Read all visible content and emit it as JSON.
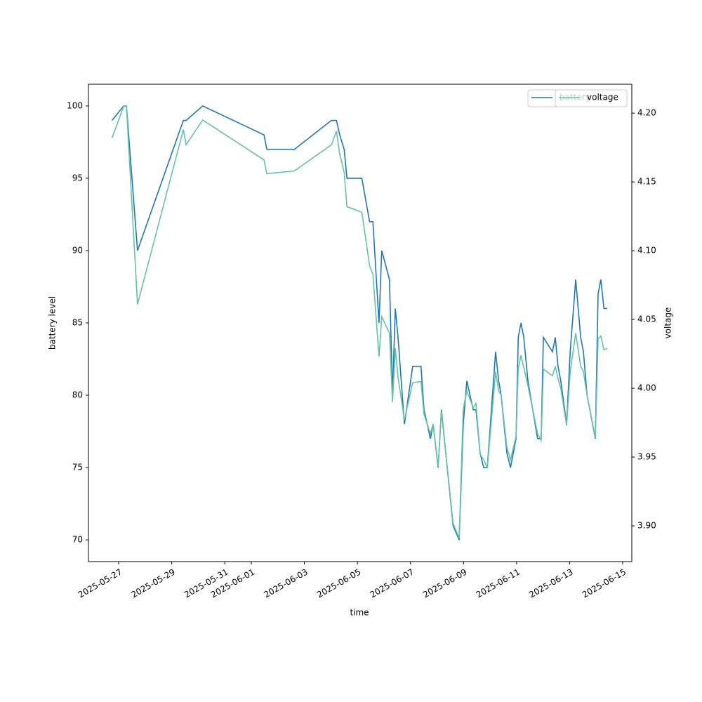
{
  "chart_data": {
    "type": "line",
    "xlabel": "time",
    "ylabel": "battery level",
    "y2label": "voltage",
    "x": [
      "2025-05-26T18:00",
      "2025-05-27T04:30",
      "2025-05-27T07:00",
      "2025-05-27T17:00",
      "2025-05-29T10:30",
      "2025-05-29T13:00",
      "2025-05-30T04:00",
      "2025-06-01T11:30",
      "2025-06-01T14:00",
      "2025-06-02T15:00",
      "2025-06-04T00:30",
      "2025-06-04T05:00",
      "2025-06-04T08:00",
      "2025-06-04T12:00",
      "2025-06-04T14:30",
      "2025-06-05T04:00",
      "2025-06-05T11:00",
      "2025-06-05T14:00",
      "2025-06-05T19:30",
      "2025-06-05T22:00",
      "2025-06-06T05:00",
      "2025-06-06T07:45",
      "2025-06-06T10:15",
      "2025-06-06T12:45",
      "2025-06-06T18:30",
      "2025-06-07T02:00",
      "2025-06-07T09:30",
      "2025-06-07T12:15",
      "2025-06-07T18:00",
      "2025-06-07T20:30",
      "2025-06-08T01:00",
      "2025-06-08T04:00",
      "2025-06-08T14:30",
      "2025-06-08T20:00",
      "2025-06-08T23:45",
      "2025-06-09T03:00",
      "2025-06-09T08:45",
      "2025-06-09T11:15",
      "2025-06-09T15:00",
      "2025-06-09T18:15",
      "2025-06-09T21:30",
      "2025-06-10T05:00",
      "2025-06-10T07:45",
      "2025-06-10T10:00",
      "2025-06-10T15:15",
      "2025-06-10T18:30",
      "2025-06-10T23:30",
      "2025-06-11T01:30",
      "2025-06-11T04:00",
      "2025-06-11T06:30",
      "2025-06-11T10:15",
      "2025-06-11T19:00",
      "2025-06-11T22:15",
      "2025-06-12T00:15",
      "2025-06-12T08:30",
      "2025-06-12T11:00",
      "2025-06-12T13:30",
      "2025-06-12T16:00",
      "2025-06-12T21:15",
      "2025-06-13T00:30",
      "2025-06-13T05:30",
      "2025-06-13T10:00",
      "2025-06-13T12:30",
      "2025-06-13T15:45",
      "2025-06-13T23:15",
      "2025-06-14T01:45",
      "2025-06-14T04:15",
      "2025-06-14T07:00",
      "2025-06-14T10:00"
    ],
    "series": [
      {
        "name": "battery",
        "color": "#1f77b4",
        "values": [
          99,
          100,
          100,
          90,
          99,
          99,
          100,
          98,
          97,
          97,
          99,
          99,
          98,
          97,
          95,
          95,
          92,
          92,
          85,
          90,
          88,
          80,
          86,
          84,
          78,
          82,
          82,
          79,
          77,
          78,
          75,
          79,
          71,
          70,
          78,
          81,
          79,
          79,
          76,
          75,
          75,
          83,
          81,
          80,
          76,
          75,
          77,
          84,
          85,
          84,
          81,
          77,
          77,
          84,
          83,
          84,
          82,
          81,
          78,
          83,
          88,
          84,
          83,
          80,
          77,
          87,
          88,
          86,
          86
        ]
      },
      {
        "name": "voltage",
        "color": "#66c2a5",
        "axis": "y2",
        "values": [
          4.182,
          4.205,
          4.205,
          4.061,
          4.188,
          4.177,
          4.195,
          4.166,
          4.156,
          4.158,
          4.177,
          4.187,
          4.17,
          4.157,
          4.132,
          4.128,
          4.089,
          4.083,
          4.023,
          4.052,
          4.04,
          3.99,
          4.029,
          4.008,
          3.977,
          4.004,
          4.005,
          3.981,
          3.967,
          3.974,
          3.943,
          3.983,
          3.902,
          3.891,
          3.985,
          3.998,
          3.986,
          3.989,
          3.952,
          3.948,
          3.942,
          4.012,
          3.998,
          3.995,
          3.957,
          3.948,
          3.965,
          4.014,
          4.024,
          4.015,
          4.002,
          3.967,
          3.962,
          4.014,
          4.009,
          4.016,
          4.007,
          4.0,
          3.973,
          4.012,
          4.04,
          4.016,
          4.012,
          3.995,
          3.964,
          4.036,
          4.038,
          4.028,
          4.029
        ]
      }
    ],
    "xlim": [
      "2025-05-25T20:38",
      "2025-06-15T08:15"
    ],
    "xticks": [
      "2025-05-27",
      "2025-05-29",
      "2025-05-31",
      "2025-06-01",
      "2025-06-03",
      "2025-06-05",
      "2025-06-07",
      "2025-06-09",
      "2025-06-11",
      "2025-06-13",
      "2025-06-15"
    ],
    "ylim": [
      68.5,
      101.5
    ],
    "yticks": [
      70,
      75,
      80,
      85,
      90,
      95,
      100
    ],
    "y2lim": [
      3.874,
      4.221
    ],
    "y2ticks": [
      {
        "value": 3.9,
        "label": "3.90"
      },
      3.95,
      {
        "value": 4.0,
        "label": "4.00"
      },
      4.05,
      {
        "value": 4.1,
        "label": "4.10"
      },
      4.15,
      {
        "value": 4.2,
        "label": "4.20"
      }
    ],
    "legend": "upper right"
  }
}
